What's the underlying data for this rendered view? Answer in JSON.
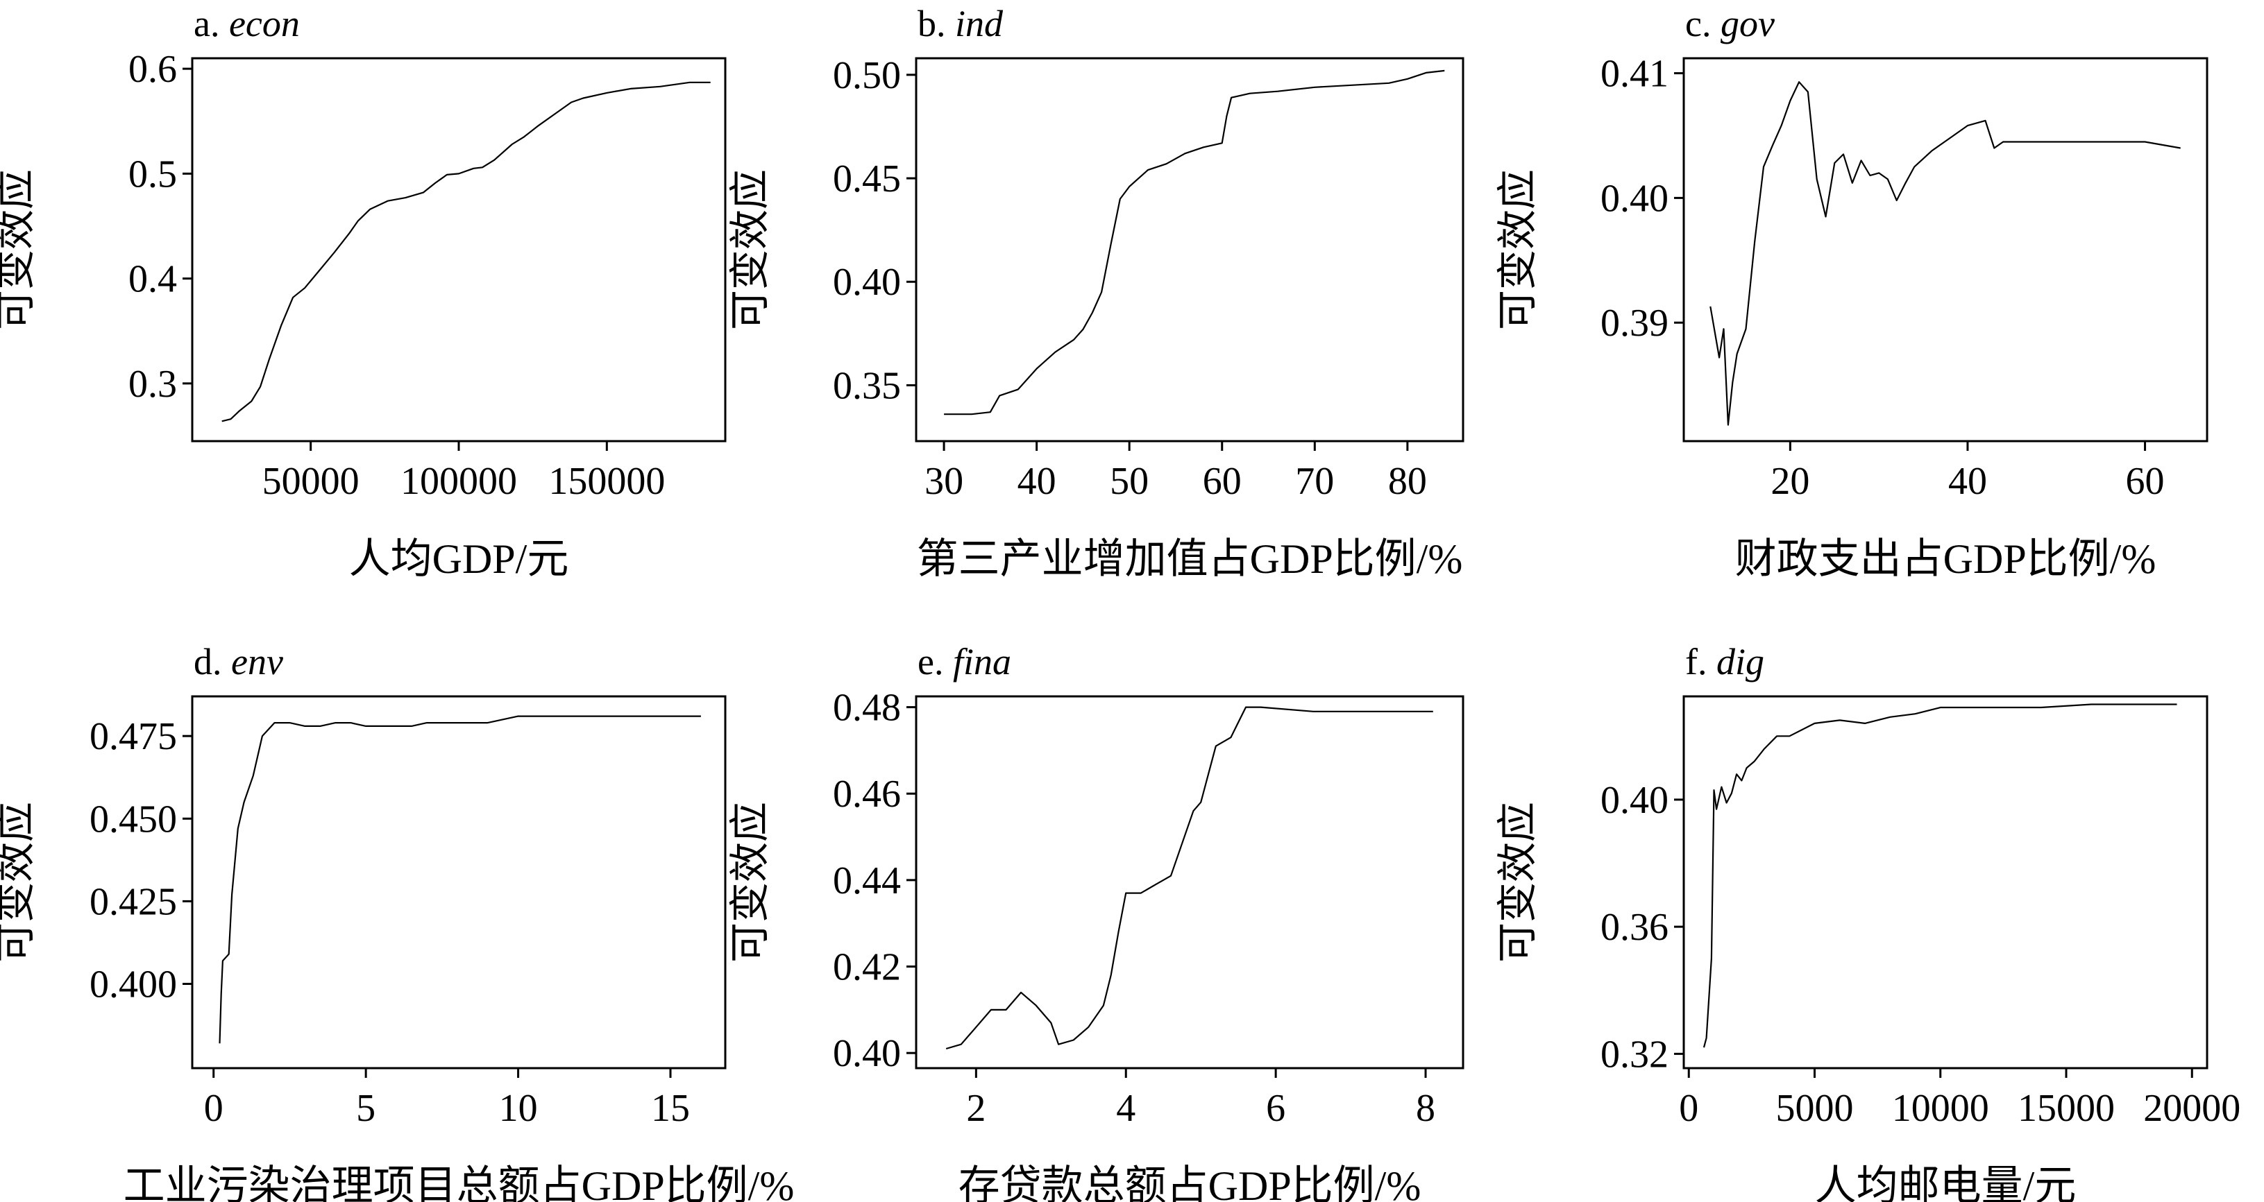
{
  "figure": {
    "y_axis_label": "可变效应"
  },
  "chart_data": [
    {
      "type": "line",
      "panel_letter": "a.",
      "panel_var": "econ",
      "xlabel": "人均GDP/元",
      "ylabel": "可变效应",
      "xlim": [
        10000,
        190000
      ],
      "ylim": [
        0.245,
        0.61
      ],
      "xticks": [
        50000,
        100000,
        150000
      ],
      "yticks": [
        0.3,
        0.4,
        0.5,
        0.6
      ],
      "tick_labels_x": [
        "50000",
        "100000",
        "150000"
      ],
      "tick_labels_y": [
        "0.3",
        "0.4",
        "0.5",
        "0.6"
      ],
      "x": [
        20000,
        23000,
        26000,
        30000,
        33000,
        36000,
        40000,
        44000,
        48000,
        53000,
        58000,
        63000,
        66000,
        70000,
        76000,
        82000,
        88000,
        92000,
        96000,
        100000,
        105000,
        108000,
        112000,
        118000,
        122000,
        127000,
        133000,
        138000,
        142000,
        150000,
        158000,
        168000,
        178000,
        185000
      ],
      "values": [
        0.264,
        0.266,
        0.274,
        0.283,
        0.297,
        0.323,
        0.355,
        0.382,
        0.391,
        0.408,
        0.425,
        0.443,
        0.455,
        0.466,
        0.474,
        0.477,
        0.482,
        0.491,
        0.499,
        0.5,
        0.505,
        0.506,
        0.513,
        0.528,
        0.535,
        0.546,
        0.558,
        0.568,
        0.572,
        0.577,
        0.581,
        0.583,
        0.587,
        0.587
      ]
    },
    {
      "type": "line",
      "panel_letter": "b.",
      "panel_var": "ind",
      "xlabel": "第三产业增加值占GDP比例/%",
      "ylabel": "可变效应",
      "xlim": [
        27,
        86
      ],
      "ylim": [
        0.323,
        0.508
      ],
      "xticks": [
        30,
        40,
        50,
        60,
        70,
        80
      ],
      "yticks": [
        0.35,
        0.4,
        0.45,
        0.5
      ],
      "tick_labels_x": [
        "30",
        "40",
        "50",
        "60",
        "70",
        "80"
      ],
      "tick_labels_y": [
        "0.35",
        "0.40",
        "0.45",
        "0.50"
      ],
      "x": [
        30,
        33,
        35,
        36,
        38,
        40,
        42,
        44,
        45,
        46,
        47,
        48,
        49,
        50,
        51,
        52,
        54,
        56,
        58,
        60,
        60.5,
        61,
        63,
        66,
        70,
        74,
        78,
        80,
        82,
        84
      ],
      "values": [
        0.336,
        0.336,
        0.337,
        0.345,
        0.348,
        0.358,
        0.366,
        0.372,
        0.377,
        0.385,
        0.395,
        0.418,
        0.44,
        0.446,
        0.45,
        0.454,
        0.457,
        0.462,
        0.465,
        0.467,
        0.48,
        0.489,
        0.491,
        0.492,
        0.494,
        0.495,
        0.496,
        0.498,
        0.501,
        0.502
      ]
    },
    {
      "type": "line",
      "panel_letter": "c.",
      "panel_var": "gov",
      "xlabel": "财政支出占GDP比例/%",
      "ylabel": "可变效应",
      "xlim": [
        8,
        67
      ],
      "ylim": [
        0.3805,
        0.4112
      ],
      "xticks": [
        20,
        40,
        60
      ],
      "yticks": [
        0.39,
        0.4,
        0.41
      ],
      "tick_labels_x": [
        "20",
        "40",
        "60"
      ],
      "tick_labels_y": [
        "0.39",
        "0.40",
        "0.41"
      ],
      "x": [
        11,
        12,
        12.5,
        13,
        13.5,
        14,
        15,
        16,
        17,
        18,
        19,
        20,
        21,
        22,
        23,
        24,
        25,
        26,
        27,
        28,
        29,
        30,
        31,
        32,
        33,
        34,
        36,
        38,
        40,
        42,
        43,
        44,
        46,
        50,
        55,
        60,
        64
      ],
      "values": [
        0.3913,
        0.3872,
        0.3895,
        0.3818,
        0.3852,
        0.3875,
        0.3895,
        0.3965,
        0.4025,
        0.4042,
        0.4058,
        0.4078,
        0.4093,
        0.4085,
        0.4015,
        0.3985,
        0.4028,
        0.4035,
        0.4012,
        0.403,
        0.4018,
        0.402,
        0.4015,
        0.3998,
        0.4012,
        0.4025,
        0.4038,
        0.4048,
        0.4058,
        0.4062,
        0.404,
        0.4045,
        0.4045,
        0.4045,
        0.4045,
        0.4045,
        0.404
      ]
    },
    {
      "type": "line",
      "panel_letter": "d.",
      "panel_var": "env",
      "xlabel": "工业污染治理项目总额占GDP比例/%",
      "ylabel": "可变效应",
      "xlim": [
        -0.7,
        16.8
      ],
      "ylim": [
        0.3745,
        0.487
      ],
      "xticks": [
        0,
        5,
        10,
        15
      ],
      "yticks": [
        0.4,
        0.425,
        0.45,
        0.475
      ],
      "tick_labels_x": [
        "0",
        "5",
        "10",
        "15"
      ],
      "tick_labels_y": [
        "0.400",
        "0.425",
        "0.450",
        "0.475"
      ],
      "x": [
        0.2,
        0.25,
        0.3,
        0.5,
        0.6,
        0.8,
        1.0,
        1.3,
        1.6,
        2.0,
        2.5,
        3.0,
        3.5,
        4.0,
        4.5,
        5.0,
        5.5,
        6.0,
        6.5,
        7.0,
        8.0,
        9.0,
        10.0,
        12.0,
        14.0,
        16.0
      ],
      "values": [
        0.382,
        0.397,
        0.407,
        0.409,
        0.427,
        0.447,
        0.455,
        0.463,
        0.475,
        0.479,
        0.479,
        0.478,
        0.478,
        0.479,
        0.479,
        0.478,
        0.478,
        0.478,
        0.478,
        0.479,
        0.479,
        0.479,
        0.481,
        0.481,
        0.481,
        0.481
      ]
    },
    {
      "type": "line",
      "panel_letter": "e.",
      "panel_var": "fina",
      "xlabel": "存贷款总额占GDP比例/%",
      "ylabel": "可变效应",
      "xlim": [
        1.2,
        8.5
      ],
      "ylim": [
        0.3965,
        0.4825
      ],
      "xticks": [
        2,
        4,
        6,
        8
      ],
      "yticks": [
        0.4,
        0.42,
        0.44,
        0.46,
        0.48
      ],
      "tick_labels_x": [
        "2",
        "4",
        "6",
        "8"
      ],
      "tick_labels_y": [
        "0.40",
        "0.42",
        "0.44",
        "0.46",
        "0.48"
      ],
      "x": [
        1.6,
        1.8,
        2.0,
        2.2,
        2.4,
        2.6,
        2.8,
        3.0,
        3.1,
        3.3,
        3.5,
        3.7,
        3.8,
        3.9,
        4.0,
        4.2,
        4.4,
        4.6,
        4.8,
        4.9,
        5.0,
        5.2,
        5.4,
        5.6,
        5.8,
        6.5,
        7.5,
        8.1
      ],
      "values": [
        0.401,
        0.402,
        0.406,
        0.41,
        0.41,
        0.414,
        0.411,
        0.407,
        0.402,
        0.403,
        0.406,
        0.411,
        0.418,
        0.428,
        0.437,
        0.437,
        0.439,
        0.441,
        0.451,
        0.456,
        0.458,
        0.471,
        0.473,
        0.48,
        0.48,
        0.479,
        0.479,
        0.479
      ]
    },
    {
      "type": "line",
      "panel_letter": "f.",
      "panel_var": "dig",
      "xlabel": "人均邮电量/元",
      "ylabel": "可变效应",
      "xlim": [
        -200,
        20600
      ],
      "ylim": [
        0.3155,
        0.4325
      ],
      "xticks": [
        0,
        5000,
        10000,
        15000,
        20000
      ],
      "yticks": [
        0.32,
        0.36,
        0.4
      ],
      "tick_labels_x": [
        "0",
        "5000",
        "10000",
        "15000",
        "20000"
      ],
      "tick_labels_y": [
        "0.32",
        "0.36",
        "0.40"
      ],
      "x": [
        600,
        700,
        900,
        1000,
        1100,
        1300,
        1500,
        1700,
        1900,
        2100,
        2300,
        2600,
        3000,
        3500,
        4000,
        5000,
        6000,
        7000,
        8000,
        9000,
        10000,
        12000,
        14000,
        16000,
        18000,
        19400
      ],
      "values": [
        0.322,
        0.325,
        0.35,
        0.403,
        0.397,
        0.404,
        0.399,
        0.402,
        0.408,
        0.406,
        0.41,
        0.412,
        0.416,
        0.42,
        0.42,
        0.424,
        0.425,
        0.424,
        0.426,
        0.427,
        0.429,
        0.429,
        0.429,
        0.43,
        0.43,
        0.43
      ]
    }
  ]
}
